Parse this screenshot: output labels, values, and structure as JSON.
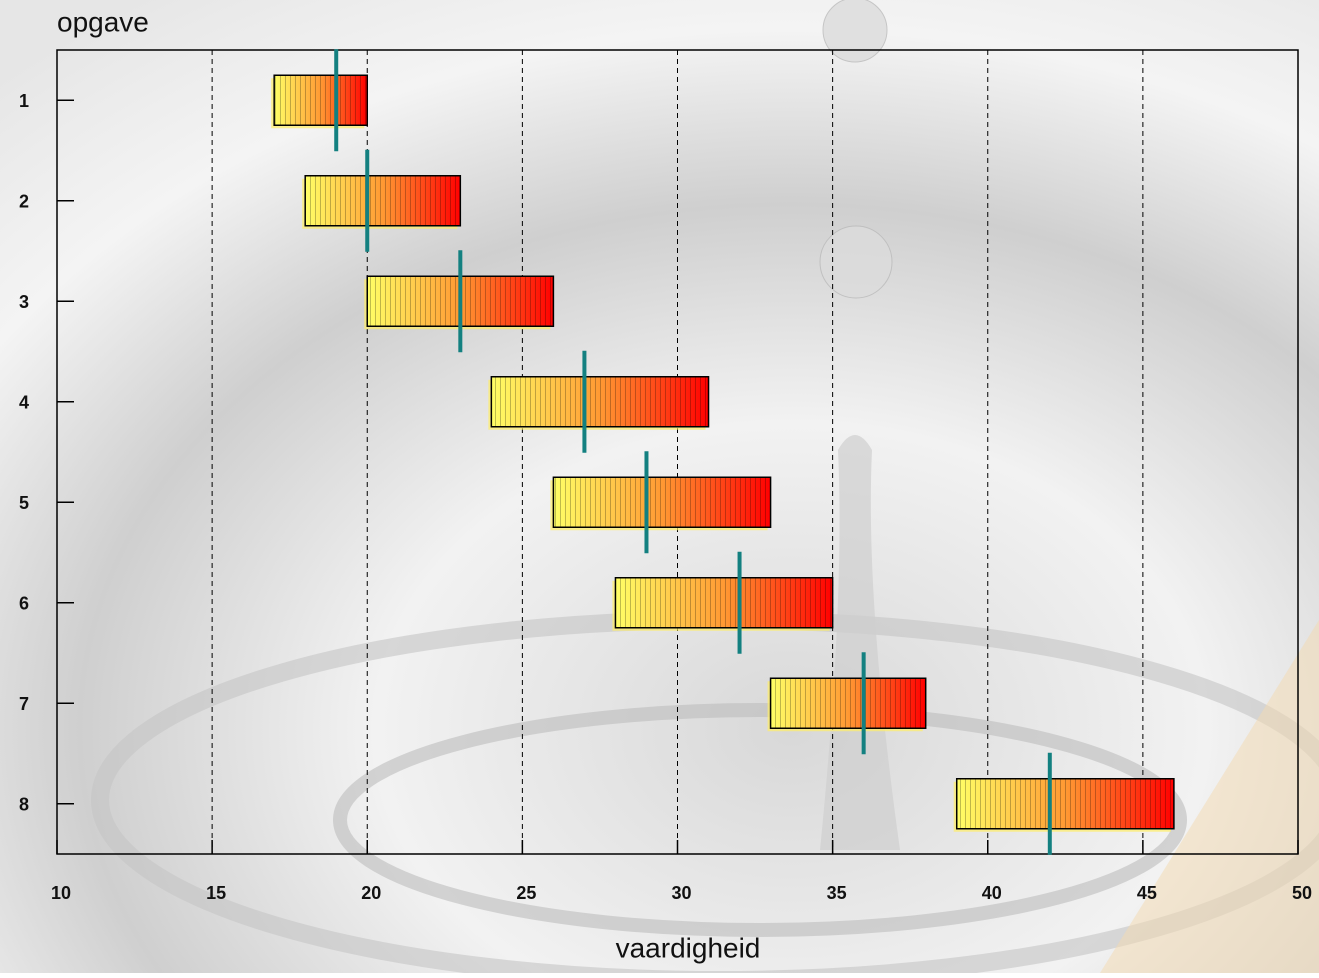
{
  "chart_data": {
    "type": "range_bar",
    "y_label": "opgave",
    "x_label": "vaardigheid",
    "categories": [
      "1",
      "2",
      "3",
      "4",
      "5",
      "6",
      "7",
      "8"
    ],
    "start": [
      17,
      18,
      20,
      24,
      26,
      28,
      33,
      39
    ],
    "end": [
      20,
      23,
      26,
      31,
      33,
      35,
      38,
      46
    ],
    "marker": [
      19,
      20,
      23,
      27,
      29,
      32,
      36,
      42
    ],
    "bar_colors": [
      "#ffff66",
      "#ff0000"
    ],
    "marker_color": "#138080",
    "xlim": [
      10,
      50
    ],
    "xticks": [
      10,
      15,
      20,
      25,
      30,
      35,
      40,
      45,
      50
    ],
    "grid": true
  }
}
